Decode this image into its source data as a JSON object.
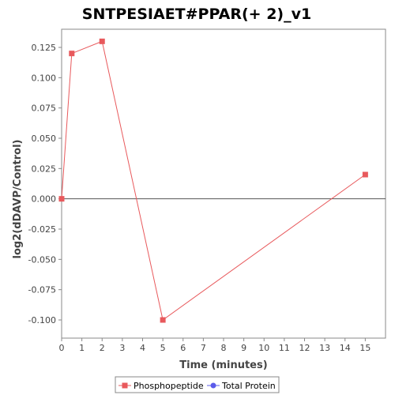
{
  "chart_data": {
    "type": "line",
    "title": "SNTPESIAET#PPAR(+ 2)_v1",
    "xlabel": "Time (minutes)",
    "ylabel": "log2(dDAVP/Control)",
    "xlim": [
      0,
      16
    ],
    "ylim": [
      -0.115,
      0.14
    ],
    "x_ticks": [
      0,
      1,
      2,
      3,
      4,
      5,
      6,
      7,
      8,
      9,
      10,
      11,
      12,
      13,
      14,
      15
    ],
    "y_ticks": [
      0.125,
      0.1,
      0.075,
      0.05,
      0.025,
      0.0,
      -0.025,
      -0.05,
      -0.075,
      -0.1
    ],
    "y_tick_labels": [
      "0.125",
      "0.100",
      "0.075",
      "0.050",
      "0.025",
      "0.000",
      "-0.025",
      "-0.050",
      "-0.075",
      "-0.100"
    ],
    "series": [
      {
        "name": "Phosphopeptide",
        "color": "#e8595c",
        "marker": "square",
        "x": [
          0,
          0.5,
          2,
          5,
          15
        ],
        "y": [
          0.0,
          0.12,
          0.13,
          -0.1,
          0.02
        ]
      },
      {
        "name": "Total Protein",
        "color": "#5b5bea",
        "marker": "circle",
        "x": [],
        "y": []
      }
    ],
    "zero_line": true,
    "grid": false,
    "legend_position": "bottom"
  }
}
